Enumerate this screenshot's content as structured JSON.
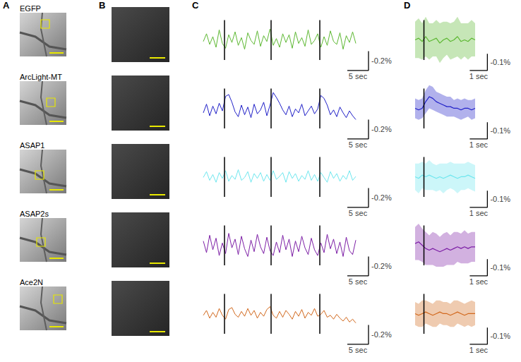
{
  "panel_labels": [
    "A",
    "B",
    "C",
    "D"
  ],
  "chart_data": [
    {
      "type": "line",
      "grid": false,
      "tick_labels": false,
      "xlim": [
        0,
        40
      ],
      "ylim": [
        0.38,
        -0.22
      ],
      "stimuli": [
        5,
        16,
        27.5
      ],
      "scalebar": {
        "x": 5,
        "x_label": "5 sec",
        "y": -0.2,
        "y_label": "-0.2%"
      },
      "x": [
        0,
        0.75,
        1.5,
        2.25,
        3,
        3.75,
        4.5,
        5.25,
        6,
        6.75,
        7.5,
        8.25,
        9,
        9.75,
        10.5,
        11.25,
        12,
        12.75,
        13.5,
        14.25,
        15,
        15.75,
        16.5,
        17.25,
        18,
        18.75,
        19.5,
        20.25,
        21,
        21.75,
        22.5,
        23.25,
        24,
        24.75,
        25.5,
        26.25,
        27,
        27.75,
        28.5,
        29.25,
        30,
        30.75,
        31.5,
        32.25,
        33,
        33.75,
        34.5,
        35.25,
        36
      ],
      "series": [
        {
          "name": "EGFP",
          "color": "#5db832",
          "values": [
            0.02,
            -0.06,
            0.05,
            -0.03,
            0.08,
            -0.1,
            0.04,
            0.09,
            -0.05,
            0.03,
            -0.08,
            0.06,
            -0.02,
            0.1,
            -0.07,
            0.01,
            0.05,
            -0.09,
            0.07,
            -0.04,
            0.02,
            -0.11,
            0.06,
            -0.01,
            0.08,
            -0.06,
            0.03,
            -0.05,
            0.09,
            -0.08,
            0.04,
            -0.02,
            0.07,
            -0.1,
            0.05,
            0.01,
            -0.06,
            0.08,
            -0.03,
            0.06,
            -0.09,
            0.02,
            0.05,
            -0.07,
            0.1,
            -0.04,
            0.03,
            -0.08,
            0.04
          ]
        },
        {
          "name": "ArcLight-MT",
          "color": "#2020c8",
          "values": [
            0.05,
            -0.04,
            0.08,
            -0.02,
            0.06,
            -0.05,
            0.03,
            -0.12,
            -0.14,
            -0.06,
            0.04,
            0.09,
            -0.03,
            0.07,
            -0.01,
            0.1,
            -0.04,
            0.06,
            0.02,
            -0.06,
            0.08,
            -0.03,
            -0.16,
            -0.11,
            -0.05,
            0.02,
            0.07,
            -0.02,
            0.09,
            0.01,
            0.05,
            -0.04,
            0.08,
            0.03,
            -0.02,
            0.06,
            0.01,
            -0.13,
            -0.1,
            -0.03,
            0.07,
            0.02,
            0.09,
            -0.01,
            0.05,
            0.1,
            0.03,
            0.08,
            0.12
          ]
        },
        {
          "name": "ASAP1",
          "color": "#6ee6ee",
          "values": [
            0.01,
            -0.05,
            0.04,
            -0.02,
            0.06,
            -0.04,
            0.02,
            -0.06,
            0.05,
            -0.01,
            0.03,
            -0.07,
            0.04,
            0.01,
            -0.05,
            0.06,
            -0.03,
            0.02,
            -0.04,
            0.05,
            -0.02,
            0.04,
            -0.06,
            0.03,
            0.0,
            -0.04,
            0.06,
            -0.05,
            0.02,
            -0.03,
            0.05,
            -0.01,
            0.03,
            -0.06,
            0.04,
            -0.02,
            0.05,
            -0.04,
            0.01,
            0.06,
            -0.05,
            0.02,
            -0.03,
            0.05,
            -0.01,
            0.03,
            -0.06,
            0.04,
            0.0
          ]
        },
        {
          "name": "ASAP2s",
          "color": "#7d1fa6",
          "values": [
            -0.04,
            0.08,
            -0.1,
            0.05,
            -0.07,
            0.11,
            -0.02,
            0.09,
            -0.12,
            0.03,
            -0.06,
            0.1,
            -0.09,
            0.04,
            0.12,
            -0.05,
            0.07,
            -0.11,
            0.02,
            0.09,
            -0.08,
            0.06,
            0.11,
            -0.03,
            0.08,
            -0.1,
            0.05,
            -0.06,
            0.12,
            -0.04,
            0.07,
            -0.09,
            0.03,
            0.1,
            -0.07,
            0.05,
            0.11,
            -0.02,
            0.08,
            -0.11,
            0.04,
            -0.06,
            0.09,
            -0.03,
            0.12,
            -0.08,
            0.06,
            0.1,
            -0.05
          ]
        },
        {
          "name": "Ace2N",
          "color": "#d2691e",
          "values": [
            0.02,
            -0.03,
            0.05,
            -0.01,
            0.04,
            -0.05,
            0.02,
            0.06,
            -0.04,
            -0.06,
            0.01,
            0.04,
            -0.02,
            0.03,
            -0.05,
            0.02,
            -0.03,
            0.05,
            -0.01,
            0.03,
            -0.04,
            -0.07,
            0.02,
            0.05,
            -0.02,
            0.04,
            -0.03,
            0.01,
            0.06,
            -0.02,
            0.03,
            -0.04,
            0.05,
            -0.01,
            0.02,
            -0.05,
            0.03,
            0.01,
            -0.03,
            0.04,
            0.02,
            0.06,
            0.01,
            0.05,
            0.08,
            0.04,
            0.09,
            0.06,
            0.1
          ]
        }
      ]
    },
    {
      "type": "line",
      "grid": false,
      "tick_labels": false,
      "xlim": [
        -0.5,
        3.7
      ],
      "ylim": [
        0.22,
        -0.13
      ],
      "stimuli": [
        0
      ],
      "scalebar": {
        "x": 1,
        "x_label": "1 sec",
        "y": -0.1,
        "y_label": "-0.1%"
      },
      "x": [
        -0.5,
        -0.3,
        -0.1,
        0.1,
        0.3,
        0.5,
        0.7,
        0.9,
        1.1,
        1.3,
        1.5,
        1.7,
        1.9,
        2.1,
        2.3,
        2.5,
        2.7,
        2.9
      ],
      "series": [
        {
          "color": "#5db832",
          "values": [
            0.0,
            -0.01,
            0.01,
            -0.02,
            0.01,
            0.0,
            -0.01,
            0.02,
            0.0,
            -0.01,
            0.01,
            0.0,
            -0.02,
            0.01,
            0.0,
            0.01,
            -0.01,
            0.0
          ],
          "sem": [
            0.11,
            0.12,
            0.11,
            0.12,
            0.11,
            0.1,
            0.11,
            0.12,
            0.11,
            0.1,
            0.11,
            0.11,
            0.12,
            0.11,
            0.1,
            0.11,
            0.11,
            0.1
          ]
        },
        {
          "color": "#2020c8",
          "values": [
            0.0,
            0.01,
            0.0,
            -0.04,
            -0.07,
            -0.06,
            -0.04,
            -0.03,
            -0.02,
            -0.01,
            -0.01,
            0.0,
            0.0,
            0.01,
            0.0,
            0.0,
            0.01,
            0.0
          ],
          "sem": [
            0.06,
            0.06,
            0.06,
            0.07,
            0.07,
            0.07,
            0.06,
            0.06,
            0.06,
            0.06,
            0.06,
            0.05,
            0.06,
            0.06,
            0.06,
            0.05,
            0.06,
            0.06
          ]
        },
        {
          "color": "#6ee6ee",
          "values": [
            0.0,
            0.01,
            -0.01,
            0.0,
            -0.01,
            0.0,
            0.01,
            0.0,
            0.01,
            0.0,
            -0.01,
            0.0,
            0.01,
            0.0,
            0.0,
            -0.01,
            0.0,
            0.01
          ],
          "sem": [
            0.08,
            0.09,
            0.08,
            0.08,
            0.09,
            0.08,
            0.08,
            0.08,
            0.09,
            0.08,
            0.08,
            0.08,
            0.09,
            0.08,
            0.08,
            0.08,
            0.08,
            0.08
          ]
        },
        {
          "color": "#7d1fa6",
          "values": [
            -0.01,
            -0.02,
            0.0,
            0.02,
            0.03,
            0.02,
            0.03,
            0.04,
            0.03,
            0.02,
            0.03,
            0.02,
            0.01,
            0.02,
            0.01,
            0.02,
            0.01,
            0.01
          ],
          "sem": [
            0.1,
            0.11,
            0.1,
            0.1,
            0.09,
            0.1,
            0.1,
            0.09,
            0.1,
            0.1,
            0.09,
            0.1,
            0.09,
            0.09,
            0.1,
            0.09,
            0.09,
            0.09
          ]
        },
        {
          "color": "#d2691e",
          "values": [
            0.0,
            0.01,
            0.0,
            -0.01,
            0.0,
            0.01,
            0.0,
            -0.01,
            0.0,
            0.0,
            0.01,
            0.0,
            -0.01,
            0.0,
            0.01,
            0.0,
            0.0,
            0.0
          ],
          "sem": [
            0.07,
            0.07,
            0.08,
            0.07,
            0.07,
            0.07,
            0.08,
            0.07,
            0.07,
            0.07,
            0.07,
            0.08,
            0.07,
            0.07,
            0.07,
            0.07,
            0.08,
            0.07
          ]
        }
      ]
    }
  ]
}
